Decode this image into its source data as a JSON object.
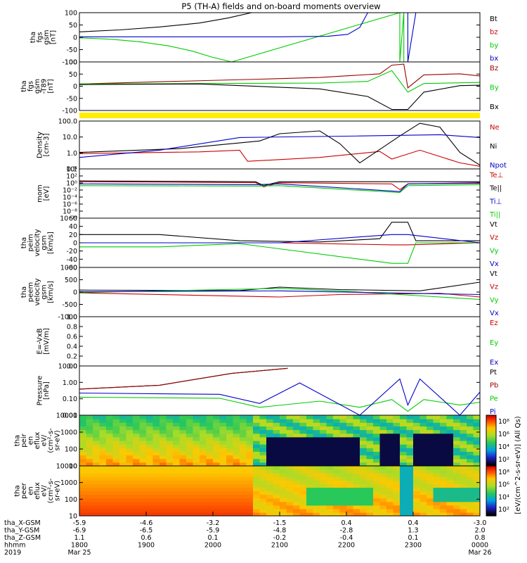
{
  "figure": {
    "title": "P5 (TH-A) fields and on-board moments overview"
  },
  "chart_data": [
    {
      "type": "line",
      "panel": "fgs-gsm",
      "ylabel_lines": [
        "tha",
        "fgs",
        "gsm",
        "[nT]"
      ],
      "ylim": [
        -100,
        100
      ],
      "yticks": [
        "100",
        "50",
        "0",
        "-50",
        "-100"
      ],
      "series": [
        {
          "name": "Bt",
          "color": "#000000",
          "values": [
            [
              0,
              22
            ],
            [
              0.1,
              30
            ],
            [
              0.2,
              42
            ],
            [
              0.3,
              58
            ],
            [
              0.37,
              78
            ],
            [
              0.43,
              100
            ]
          ]
        },
        {
          "name": "bz",
          "color": "#cc0000",
          "values": []
        },
        {
          "name": "by",
          "color": "#00cc00",
          "values": [
            [
              0,
              -2
            ],
            [
              0.08,
              -8
            ],
            [
              0.15,
              -18
            ],
            [
              0.22,
              -34
            ],
            [
              0.28,
              -55
            ],
            [
              0.33,
              -80
            ],
            [
              0.38,
              -100
            ],
            [
              0.8,
              100
            ],
            [
              0.8,
              -100
            ],
            [
              0.81,
              100
            ],
            [
              0.81,
              -100
            ]
          ]
        },
        {
          "name": "bx",
          "color": "#0000cc",
          "values": [
            [
              0,
              2
            ],
            [
              0.2,
              2
            ],
            [
              0.5,
              2
            ],
            [
              0.62,
              4
            ],
            [
              0.67,
              12
            ],
            [
              0.7,
              40
            ],
            [
              0.72,
              100
            ],
            [
              0.82,
              100
            ],
            [
              0.82,
              -100
            ],
            [
              0.84,
              100
            ]
          ]
        }
      ]
    },
    {
      "type": "line",
      "panel": "fgs-gsm-t89",
      "ylabel_lines": [
        "tha",
        "fgs",
        "gsm",
        "-T89",
        "[nT]"
      ],
      "ylim": [
        -125,
        100
      ],
      "yticks": [
        "100",
        "50",
        "0",
        "-50",
        "-100"
      ],
      "series": [
        {
          "name": "Bz",
          "color": "#990000",
          "values": [
            [
              0,
              -2
            ],
            [
              0.2,
              8
            ],
            [
              0.45,
              20
            ],
            [
              0.6,
              28
            ],
            [
              0.75,
              45
            ],
            [
              0.78,
              85
            ],
            [
              0.81,
              90
            ],
            [
              0.82,
              -20
            ],
            [
              0.86,
              40
            ],
            [
              0.95,
              45
            ],
            [
              1,
              35
            ]
          ]
        },
        {
          "name": "By",
          "color": "#00cc00",
          "values": [
            [
              0,
              -2
            ],
            [
              0.3,
              0
            ],
            [
              0.6,
              2
            ],
            [
              0.72,
              10
            ],
            [
              0.78,
              60
            ],
            [
              0.82,
              -40
            ],
            [
              0.86,
              0
            ],
            [
              1,
              5
            ]
          ]
        },
        {
          "name": "Bx",
          "color": "#000000",
          "values": [
            [
              0,
              -5
            ],
            [
              0.3,
              -2
            ],
            [
              0.6,
              -25
            ],
            [
              0.72,
              -60
            ],
            [
              0.78,
              -120
            ],
            [
              0.82,
              -120
            ],
            [
              0.86,
              -40
            ],
            [
              0.95,
              -10
            ],
            [
              1,
              -8
            ]
          ]
        }
      ]
    },
    {
      "type": "line",
      "panel": "density",
      "ylabel_lines": [
        "Density",
        "[cm-3]"
      ],
      "log": true,
      "ylim": [
        0.05,
        300
      ],
      "yticks": [
        "100.0",
        "10.0",
        "1.0",
        "0.1"
      ],
      "series": [
        {
          "name": "Ne",
          "color": "#cc0000",
          "values": [
            [
              0,
              0.8
            ],
            [
              0.3,
              1.1
            ],
            [
              0.4,
              1.5
            ],
            [
              0.42,
              0.2
            ],
            [
              0.6,
              0.4
            ],
            [
              0.75,
              1.2
            ],
            [
              0.78,
              0.3
            ],
            [
              0.85,
              1.5
            ],
            [
              0.95,
              0.15
            ],
            [
              1,
              0.08
            ]
          ]
        },
        {
          "name": "Ni",
          "color": "#000000",
          "values": [
            [
              0,
              1
            ],
            [
              0.25,
              2
            ],
            [
              0.45,
              8
            ],
            [
              0.5,
              30
            ],
            [
              0.6,
              50
            ],
            [
              0.65,
              5
            ],
            [
              0.7,
              0.15
            ],
            [
              0.8,
              20
            ],
            [
              0.85,
              200
            ],
            [
              0.9,
              100
            ],
            [
              0.95,
              1
            ],
            [
              1,
              0.1
            ]
          ]
        },
        {
          "name": "Npot",
          "color": "#0000cc",
          "values": [
            [
              0,
              0.4
            ],
            [
              0.2,
              1.5
            ],
            [
              0.4,
              15
            ],
            [
              0.7,
              20
            ],
            [
              0.9,
              25
            ],
            [
              1,
              15
            ]
          ]
        }
      ]
    },
    {
      "type": "line",
      "panel": "temperature",
      "ylabel_lines": [
        "mom",
        "[eV]"
      ],
      "log": true,
      "ylim": [
        1,
        100000
      ],
      "yticks": [
        "10⁴",
        "10²",
        "10⁰",
        "10⁻²",
        "10⁻⁴",
        "10⁻⁶",
        "10⁻⁸",
        "10⁻¹⁰"
      ],
      "series": [
        {
          "name": "Te⊥",
          "color": "#cc0000",
          "values": [
            [
              0,
              5000
            ],
            [
              0.44,
              4000
            ],
            [
              0.46,
              1500
            ],
            [
              0.5,
              4000
            ],
            [
              0.78,
              3000
            ],
            [
              0.8,
              800
            ],
            [
              0.82,
              3000
            ],
            [
              1,
              4000
            ]
          ]
        },
        {
          "name": "Te||",
          "color": "#000000",
          "values": [
            [
              0,
              6000
            ],
            [
              0.44,
              5000
            ],
            [
              0.46,
              2000
            ],
            [
              0.5,
              5000
            ],
            [
              1,
              5000
            ]
          ]
        },
        {
          "name": "Ti⊥",
          "color": "#0000cc",
          "values": [
            [
              0,
              3000
            ],
            [
              0.44,
              2500
            ],
            [
              0.5,
              3000
            ],
            [
              0.8,
              500
            ],
            [
              0.82,
              3000
            ],
            [
              1,
              3500
            ]
          ]
        },
        {
          "name": "Ti||",
          "color": "#00cc00",
          "values": [
            [
              0,
              2000
            ],
            [
              0.44,
              1800
            ],
            [
              0.5,
              2000
            ],
            [
              0.8,
              400
            ],
            [
              0.82,
              2000
            ],
            [
              1,
              2500
            ]
          ]
        }
      ]
    },
    {
      "type": "line",
      "panel": "peim-velocity",
      "ylabel_lines": [
        "tha",
        "peim",
        "velocity",
        "gsm",
        "[km/s]"
      ],
      "ylim": [
        -60,
        60
      ],
      "yticks": [
        "60",
        "40",
        "20",
        "0",
        "-20",
        "-40",
        "-60"
      ],
      "series": [
        {
          "name": "Vt",
          "color": "#000000",
          "values": [
            [
              0,
              20
            ],
            [
              0.2,
              20
            ],
            [
              0.4,
              5
            ],
            [
              0.6,
              2
            ],
            [
              0.75,
              10
            ],
            [
              0.78,
              50
            ],
            [
              0.82,
              50
            ],
            [
              0.84,
              5
            ],
            [
              1,
              5
            ]
          ]
        },
        {
          "name": "Vz",
          "color": "#cc0000",
          "values": [
            [
              0,
              0
            ],
            [
              0.5,
              0
            ],
            [
              0.78,
              -5
            ],
            [
              0.82,
              -5
            ],
            [
              1,
              0
            ]
          ]
        },
        {
          "name": "Vy",
          "color": "#00cc00",
          "values": [
            [
              0,
              -10
            ],
            [
              0.2,
              -10
            ],
            [
              0.4,
              -2
            ],
            [
              0.78,
              -50
            ],
            [
              0.82,
              -50
            ],
            [
              0.84,
              0
            ],
            [
              1,
              0
            ]
          ]
        },
        {
          "name": "Vx",
          "color": "#0000cc",
          "values": [
            [
              0,
              0
            ],
            [
              0.5,
              0
            ],
            [
              0.78,
              20
            ],
            [
              0.82,
              20
            ],
            [
              1,
              0
            ]
          ]
        }
      ]
    },
    {
      "type": "line",
      "panel": "peem-velocity",
      "ylabel_lines": [
        "tha",
        "peem",
        "velocity",
        "gsm",
        "[km/s]"
      ],
      "ylim": [
        -1000,
        1000
      ],
      "yticks": [
        "1000",
        "500",
        "0",
        "-500",
        "-1000"
      ],
      "series": [
        {
          "name": "Vt",
          "color": "#000000",
          "values": [
            [
              0,
              80
            ],
            [
              0.4,
              60
            ],
            [
              0.5,
              200
            ],
            [
              0.65,
              100
            ],
            [
              0.85,
              50
            ],
            [
              1,
              400
            ]
          ]
        },
        {
          "name": "Vz",
          "color": "#cc0000",
          "values": [
            [
              0,
              -30
            ],
            [
              0.5,
              -200
            ],
            [
              0.65,
              -100
            ],
            [
              0.9,
              -50
            ],
            [
              1,
              -200
            ]
          ]
        },
        {
          "name": "Vy",
          "color": "#00cc00",
          "values": [
            [
              0,
              -20
            ],
            [
              0.5,
              150
            ],
            [
              0.65,
              50
            ],
            [
              1,
              -300
            ]
          ]
        },
        {
          "name": "Vx",
          "color": "#0000cc",
          "values": [
            [
              0,
              10
            ],
            [
              0.5,
              50
            ],
            [
              1,
              -100
            ]
          ]
        }
      ]
    },
    {
      "type": "line",
      "panel": "efield",
      "ylabel_lines": [
        "E=-VxB",
        "[mV/m]"
      ],
      "ylim": [
        0,
        1
      ],
      "yticks": [
        "1.0",
        "0.8",
        "0.6",
        "0.4",
        "0.2",
        "0.0"
      ],
      "series": [
        {
          "name": "Ez",
          "color": "#cc0000",
          "values": []
        },
        {
          "name": "Ey",
          "color": "#00cc00",
          "values": []
        },
        {
          "name": "Ex",
          "color": "#0000cc",
          "values": []
        }
      ]
    },
    {
      "type": "line",
      "panel": "pressure",
      "ylabel_lines": [
        "Pressure",
        "[nPa]"
      ],
      "log": true,
      "ylim": [
        0.005,
        30
      ],
      "yticks": [
        "10.00",
        "1.00",
        "0.10",
        "0.01"
      ],
      "series": [
        {
          "name": "Pt",
          "color": "#000000",
          "values": [
            [
              0,
              0.5
            ],
            [
              0.2,
              1
            ],
            [
              0.38,
              8
            ],
            [
              0.52,
              20
            ]
          ]
        },
        {
          "name": "Pb",
          "color": "#990000",
          "values": [
            [
              0,
              0.5
            ],
            [
              0.2,
              1
            ],
            [
              0.38,
              8
            ],
            [
              0.52,
              20
            ]
          ]
        },
        {
          "name": "Pe",
          "color": "#00cc00",
          "values": [
            [
              0,
              0.12
            ],
            [
              0.35,
              0.1
            ],
            [
              0.45,
              0.02
            ],
            [
              0.6,
              0.06
            ],
            [
              0.7,
              0.02
            ],
            [
              0.78,
              0.08
            ],
            [
              0.82,
              0.01
            ],
            [
              0.86,
              0.08
            ],
            [
              0.95,
              0.03
            ],
            [
              1,
              0.05
            ]
          ]
        },
        {
          "name": "Pi",
          "color": "#0000cc",
          "values": [
            [
              0,
              0.25
            ],
            [
              0.35,
              0.2
            ],
            [
              0.45,
              0.04
            ],
            [
              0.55,
              1.5
            ],
            [
              0.7,
              0.005
            ],
            [
              0.8,
              3
            ],
            [
              0.82,
              0.03
            ],
            [
              0.85,
              3
            ],
            [
              0.95,
              0.005
            ],
            [
              1,
              0.3
            ]
          ]
        }
      ]
    },
    {
      "type": "heatmap",
      "panel": "peir-en-eflux",
      "ylabel_lines": [
        "tha",
        "peir",
        "en",
        "eflux",
        "eV/",
        "(cm²-s-",
        "sr-eV)"
      ],
      "log": true,
      "ylim": [
        5,
        30000
      ],
      "yticks": [
        "10000",
        "1000",
        "100",
        "10"
      ]
    },
    {
      "type": "heatmap",
      "panel": "peer-en-eflux",
      "ylabel_lines": [
        "tha",
        "peer",
        "en",
        "eflux",
        "eV/",
        "(cm²-s-",
        "sr-eV)"
      ],
      "log": true,
      "ylim": [
        5,
        30000
      ],
      "yticks": [
        "10000",
        "1000",
        "100",
        "10"
      ]
    }
  ],
  "colorbar": {
    "label": "[eV/(cm^2-s-sr-eV)] (All Qs)",
    "ticks": [
      "10⁸",
      "10⁶",
      "10⁴",
      "10²",
      "10⁸",
      "10⁶",
      "10⁴",
      "10²"
    ]
  },
  "xaxis": {
    "rows": [
      {
        "label": "tha_X-GSM",
        "values": [
          "-5.9",
          "-4.6",
          "-3.2",
          "-1.5",
          "0.4",
          "0.4",
          "-3.0"
        ]
      },
      {
        "label": "tha_Y-GSM",
        "values": [
          "-6.9",
          "-6.5",
          "-5.9",
          "-4.8",
          "-2.8",
          "1.3",
          "2.0"
        ]
      },
      {
        "label": "tha_Z-GSM",
        "values": [
          "1.1",
          "0.6",
          "0.1",
          "-0.2",
          "-0.4",
          "0.1",
          "0.8"
        ]
      },
      {
        "label": "hhmm",
        "values": [
          "1800",
          "1900",
          "2000",
          "2100",
          "2200",
          "2300",
          "0000"
        ]
      },
      {
        "label": "2019",
        "values": [
          "Mar 25",
          "",
          "",
          "",
          "",
          "",
          "Mar 26"
        ]
      }
    ]
  }
}
